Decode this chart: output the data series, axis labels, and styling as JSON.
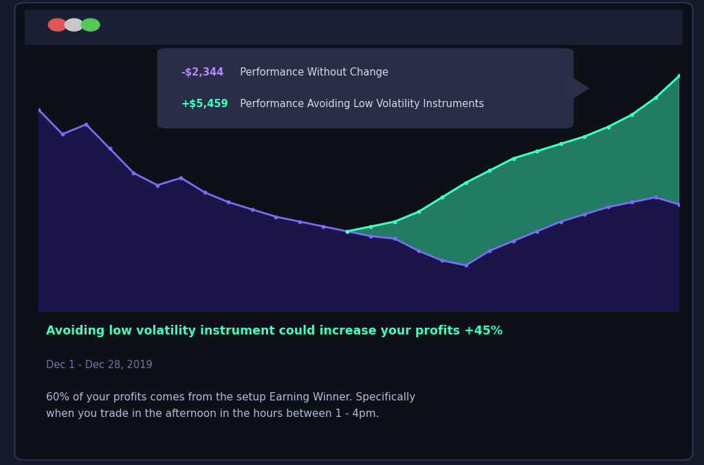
{
  "bg_outer": "#161b2a",
  "bg_card": "#0d1117",
  "titlebar_color": "#1a2035",
  "dot_colors": [
    "#e05555",
    "#c8c8c8",
    "#55c855"
  ],
  "actual_line_color": "#7b6cf6",
  "actual_fill_color": "#1e1650",
  "simulated_line_color": "#3dffc0",
  "simulated_fill_color": "#3dffc0",
  "tooltip_bg": "#2a3048",
  "tooltip_value1_color": "#b388ff",
  "tooltip_label1_color": "#d8d8e8",
  "tooltip_value2_color": "#3dffc0",
  "tooltip_label2_color": "#d8d8e8",
  "heading_color": "#3dffc0",
  "subheading_color": "#6677aa",
  "body_color": "#b0bdd8",
  "actual_x": [
    0,
    1,
    2,
    3,
    4,
    5,
    6,
    7,
    8,
    9,
    10,
    11,
    12,
    13,
    14,
    15,
    16,
    17,
    18,
    19,
    20,
    21,
    22,
    23,
    24,
    25,
    26,
    27
  ],
  "actual_y": [
    88,
    78,
    82,
    72,
    62,
    57,
    60,
    54,
    50,
    47,
    44,
    42,
    40,
    38,
    36,
    35,
    30,
    26,
    24,
    30,
    34,
    38,
    42,
    45,
    48,
    50,
    52,
    49
  ],
  "simulated_x": [
    13,
    14,
    15,
    16,
    17,
    18,
    19,
    20,
    21,
    22,
    23,
    24,
    25,
    26,
    27
  ],
  "simulated_y": [
    38,
    40,
    42,
    46,
    52,
    58,
    63,
    68,
    71,
    74,
    77,
    81,
    86,
    93,
    102
  ],
  "tooltip_line1_value": "-$2,344",
  "tooltip_line1_label": "  Performance Without Change",
  "tooltip_line2_value": "+$5,459",
  "tooltip_line2_label": "  Performance Avoiding Low Volatility Instruments",
  "main_heading": "Avoiding low volatility instrument could increase your profits +45%",
  "date_range": "Dec 1 - Dec 28, 2019",
  "body_text": "60% of your profits comes from the setup Earning Winner. Specifically\nwhen you trade in the afternoon in the hours between 1 - 4pm."
}
